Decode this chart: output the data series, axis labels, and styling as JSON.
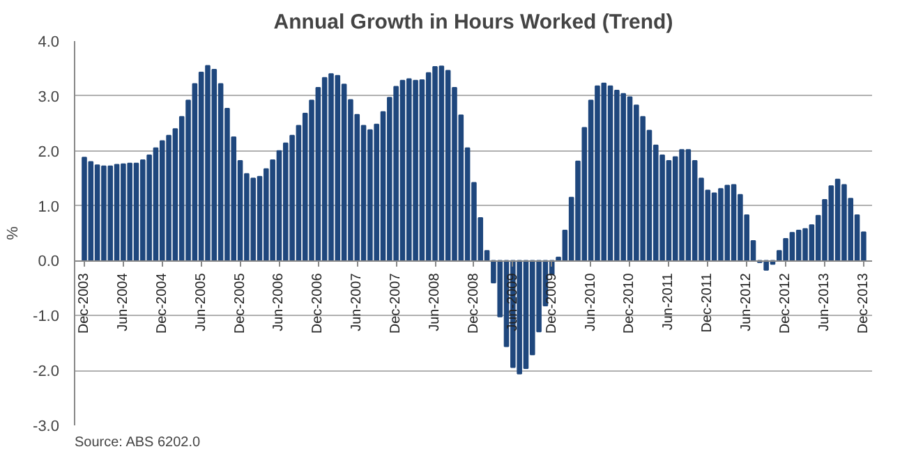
{
  "chart_data": {
    "type": "bar",
    "title": "Annual Growth in Hours Worked (Trend)",
    "ylabel": "%",
    "categories": [
      "Dec-2003",
      null,
      null,
      null,
      null,
      null,
      "Jun-2004",
      null,
      null,
      null,
      null,
      null,
      "Dec-2004",
      null,
      null,
      null,
      null,
      null,
      "Jun-2005",
      null,
      null,
      null,
      null,
      null,
      "Dec-2005",
      null,
      null,
      null,
      null,
      null,
      "Jun-2006",
      null,
      null,
      null,
      null,
      null,
      "Dec-2006",
      null,
      null,
      null,
      null,
      null,
      "Jun-2007",
      null,
      null,
      null,
      null,
      null,
      "Dec-2007",
      null,
      null,
      null,
      null,
      null,
      "Jun-2008",
      null,
      null,
      null,
      null,
      null,
      "Dec-2008",
      null,
      null,
      null,
      null,
      null,
      "Jun-2009",
      null,
      null,
      null,
      null,
      null,
      "Dec-2009",
      null,
      null,
      null,
      null,
      null,
      "Jun-2010",
      null,
      null,
      null,
      null,
      null,
      "Dec-2010",
      null,
      null,
      null,
      null,
      null,
      "Jun-2011",
      null,
      null,
      null,
      null,
      null,
      "Dec-2011",
      null,
      null,
      null,
      null,
      null,
      "Jun-2012",
      null,
      null,
      null,
      null,
      null,
      "Dec-2012",
      null,
      null,
      null,
      null,
      null,
      "Jun-2013",
      null,
      null,
      null,
      null,
      null,
      "Dec-2013"
    ],
    "values": [
      1.88,
      1.8,
      1.74,
      1.72,
      1.72,
      1.75,
      1.76,
      1.77,
      1.77,
      1.83,
      1.92,
      2.05,
      2.18,
      2.28,
      2.4,
      2.62,
      2.92,
      3.22,
      3.43,
      3.55,
      3.48,
      3.22,
      2.77,
      2.25,
      1.82,
      1.58,
      1.5,
      1.53,
      1.67,
      1.83,
      2.0,
      2.14,
      2.28,
      2.46,
      2.68,
      2.92,
      3.15,
      3.33,
      3.4,
      3.37,
      3.21,
      2.93,
      2.66,
      2.46,
      2.38,
      2.48,
      2.71,
      2.97,
      3.17,
      3.28,
      3.31,
      3.28,
      3.29,
      3.42,
      3.53,
      3.54,
      3.46,
      3.15,
      2.65,
      2.05,
      1.42,
      0.78,
      0.18,
      -0.4,
      -1.02,
      -1.56,
      -1.94,
      -2.06,
      -1.96,
      -1.71,
      -1.29,
      -0.82,
      -0.25,
      0.06,
      0.55,
      1.15,
      1.81,
      2.42,
      2.92,
      3.18,
      3.23,
      3.18,
      3.1,
      3.04,
      2.98,
      2.83,
      2.62,
      2.37,
      2.1,
      1.92,
      1.82,
      1.89,
      2.02,
      2.02,
      1.82,
      1.5,
      1.28,
      1.23,
      1.31,
      1.37,
      1.38,
      1.2,
      0.83,
      0.36,
      -0.03,
      -0.17,
      -0.06,
      0.18,
      0.4,
      0.51,
      0.55,
      0.58,
      0.65,
      0.82,
      1.11,
      1.36,
      1.48,
      1.38,
      1.13,
      0.83,
      0.52
    ],
    "color": "#1f477d",
    "ylim": [
      -3.0,
      4.0
    ],
    "yticks": [
      {
        "value": -3,
        "label": "-3.0"
      },
      {
        "value": -2,
        "label": "-2.0"
      },
      {
        "value": -1,
        "label": "-1.0"
      },
      {
        "value": 0,
        "label": "0.0"
      },
      {
        "value": 1,
        "label": "1.0"
      },
      {
        "value": 2,
        "label": "2.0"
      },
      {
        "value": 3,
        "label": "3.0"
      },
      {
        "value": 4,
        "label": "4.0"
      }
    ],
    "grid": "y",
    "annotations": [
      "Source: ABS 6202.0"
    ]
  }
}
